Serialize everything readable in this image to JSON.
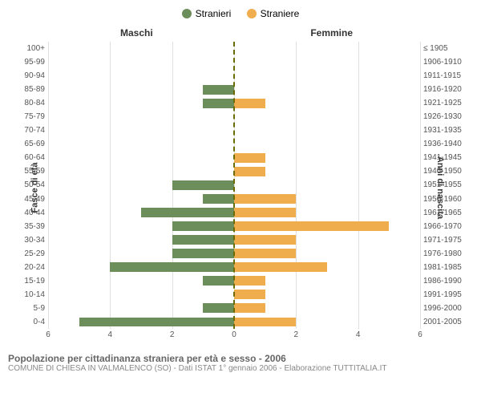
{
  "legend": {
    "male": {
      "label": "Stranieri",
      "color": "#6b8e5a"
    },
    "female": {
      "label": "Straniere",
      "color": "#f0ad4e"
    }
  },
  "headers": {
    "male": "Maschi",
    "female": "Femmine"
  },
  "axis_titles": {
    "left": "Fasce di età",
    "right": "Anni di nascita"
  },
  "chart": {
    "type": "population-pyramid",
    "xmax": 6,
    "xticks": [
      6,
      4,
      2,
      0,
      2,
      4,
      6
    ],
    "centerline_color": "#6b6b00",
    "grid_color": "#e0e0e0",
    "background_color": "#ffffff",
    "bar_color_m": "#6b8e5a",
    "bar_color_f": "#f0ad4e",
    "label_fontsize": 10,
    "rows": [
      {
        "age": "100+",
        "birth": "≤ 1905",
        "m": 0,
        "f": 0
      },
      {
        "age": "95-99",
        "birth": "1906-1910",
        "m": 0,
        "f": 0
      },
      {
        "age": "90-94",
        "birth": "1911-1915",
        "m": 0,
        "f": 0
      },
      {
        "age": "85-89",
        "birth": "1916-1920",
        "m": 1,
        "f": 0
      },
      {
        "age": "80-84",
        "birth": "1921-1925",
        "m": 1,
        "f": 1
      },
      {
        "age": "75-79",
        "birth": "1926-1930",
        "m": 0,
        "f": 0
      },
      {
        "age": "70-74",
        "birth": "1931-1935",
        "m": 0,
        "f": 0
      },
      {
        "age": "65-69",
        "birth": "1936-1940",
        "m": 0,
        "f": 0
      },
      {
        "age": "60-64",
        "birth": "1941-1945",
        "m": 0,
        "f": 1
      },
      {
        "age": "55-59",
        "birth": "1946-1950",
        "m": 0,
        "f": 1
      },
      {
        "age": "50-54",
        "birth": "1951-1955",
        "m": 2,
        "f": 0
      },
      {
        "age": "45-49",
        "birth": "1956-1960",
        "m": 1,
        "f": 2
      },
      {
        "age": "40-44",
        "birth": "1961-1965",
        "m": 3,
        "f": 2
      },
      {
        "age": "35-39",
        "birth": "1966-1970",
        "m": 2,
        "f": 5
      },
      {
        "age": "30-34",
        "birth": "1971-1975",
        "m": 2,
        "f": 2
      },
      {
        "age": "25-29",
        "birth": "1976-1980",
        "m": 2,
        "f": 2
      },
      {
        "age": "20-24",
        "birth": "1981-1985",
        "m": 4,
        "f": 3
      },
      {
        "age": "15-19",
        "birth": "1986-1990",
        "m": 1,
        "f": 1
      },
      {
        "age": "10-14",
        "birth": "1991-1995",
        "m": 0,
        "f": 1
      },
      {
        "age": "5-9",
        "birth": "1996-2000",
        "m": 1,
        "f": 1
      },
      {
        "age": "0-4",
        "birth": "2001-2005",
        "m": 5,
        "f": 2
      }
    ]
  },
  "caption": "Popolazione per cittadinanza straniera per età e sesso - 2006",
  "subcaption": "COMUNE DI CHIESA IN VALMALENCO (SO) - Dati ISTAT 1° gennaio 2006 - Elaborazione TUTTITALIA.IT"
}
